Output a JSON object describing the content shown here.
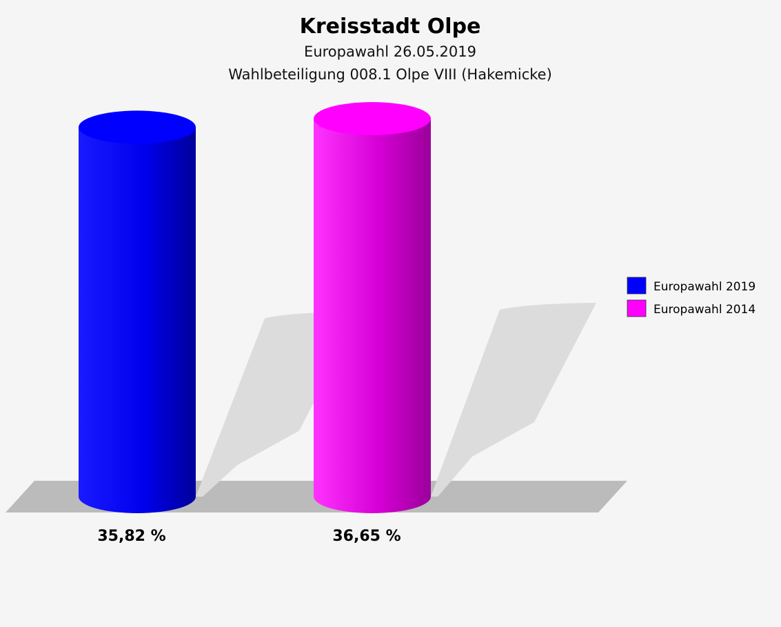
{
  "chart_data": {
    "type": "bar",
    "title": "Kreisstadt Olpe",
    "subtitle_lines": [
      "Europawahl 26.05.2019",
      "Wahlbeteiligung 008.1 Olpe VIII (Hakemicke)"
    ],
    "categories": [
      "Europawahl 2019",
      "Europawahl 2014"
    ],
    "values": [
      35.82,
      36.65
    ],
    "value_labels": [
      "35,82 %",
      "36,65 %"
    ],
    "colors": [
      "#0000ff",
      "#ff00ff"
    ],
    "legend": {
      "position": "right",
      "entries": [
        {
          "label": "Europawahl 2019",
          "color": "#0000ff"
        },
        {
          "label": "Europawahl 2014",
          "color": "#ff00ff"
        }
      ]
    },
    "ylim": [
      0,
      36.65
    ],
    "grid": false
  }
}
